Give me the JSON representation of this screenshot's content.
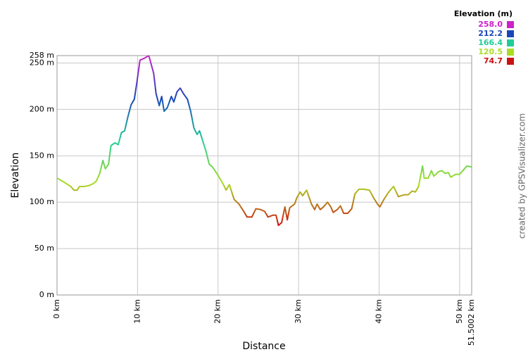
{
  "chart_data": {
    "type": "line",
    "x_label": "Distance",
    "y_label": "Elevation",
    "credit": "created by GPSVisualizer.com",
    "grid": true,
    "xlim": [
      0,
      51.5002
    ],
    "ylim": [
      0,
      258
    ],
    "xticks": [
      {
        "value": 0,
        "label": "0 km"
      },
      {
        "value": 10,
        "label": "10 km"
      },
      {
        "value": 20,
        "label": "20 km"
      },
      {
        "value": 30,
        "label": "30 km"
      },
      {
        "value": 40,
        "label": "40 km"
      },
      {
        "value": 50,
        "label": "50 km"
      },
      {
        "value": 51.5002,
        "label": "51.5002 km"
      }
    ],
    "yticks": [
      {
        "value": 0,
        "label": "0 m"
      },
      {
        "value": 50,
        "label": "50 m"
      },
      {
        "value": 100,
        "label": "100 m"
      },
      {
        "value": 150,
        "label": "150 m"
      },
      {
        "value": 200,
        "label": "200 m"
      },
      {
        "value": 250,
        "label": "250 m"
      },
      {
        "value": 258,
        "label": "258 m"
      }
    ],
    "legend": {
      "title": "Elevation (m)",
      "position": "top-right",
      "entries": [
        {
          "value": 258.0,
          "label": "258.0",
          "color": "#cc22cc"
        },
        {
          "value": 212.2,
          "label": "212.2",
          "color": "#1a47b8"
        },
        {
          "value": 166.4,
          "label": "166.4",
          "color": "#22cc99"
        },
        {
          "value": 120.5,
          "label": "120.5",
          "color": "#aadd22"
        },
        {
          "value": 74.7,
          "label": "74.7",
          "color": "#cc1111"
        }
      ]
    },
    "x": [
      0,
      0.8,
      1.7,
      2.1,
      2.5,
      2.8,
      3.4,
      4.0,
      4.5,
      4.9,
      5.3,
      5.7,
      6.0,
      6.4,
      6.7,
      7.2,
      7.6,
      8.0,
      8.4,
      8.8,
      9.2,
      9.6,
      9.9,
      10.3,
      10.8,
      11.4,
      12.0,
      12.3,
      12.7,
      13.0,
      13.3,
      13.7,
      14.2,
      14.5,
      14.9,
      15.3,
      15.7,
      16.2,
      16.6,
      17.0,
      17.4,
      17.7,
      18.1,
      18.5,
      18.9,
      19.3,
      19.7,
      20.2,
      20.6,
      21.0,
      21.4,
      22.0,
      22.6,
      23.2,
      23.6,
      24.2,
      24.7,
      25.3,
      25.8,
      26.2,
      26.8,
      27.2,
      27.5,
      27.9,
      28.3,
      28.6,
      28.9,
      29.5,
      29.8,
      30.2,
      30.5,
      31.0,
      31.6,
      32.0,
      32.3,
      32.7,
      33.1,
      33.6,
      34.0,
      34.3,
      34.8,
      35.2,
      35.6,
      36.1,
      36.6,
      37.0,
      37.5,
      38.1,
      38.8,
      39.3,
      39.8,
      40.1,
      40.6,
      41.2,
      41.8,
      42.4,
      43.1,
      43.6,
      44.1,
      44.5,
      44.9,
      45.4,
      45.6,
      46.1,
      46.5,
      46.8,
      47.4,
      47.8,
      48.2,
      48.6,
      48.9,
      49.5,
      50.0,
      50.4,
      50.9,
      51.5
    ],
    "values": [
      126,
      122,
      117,
      113,
      113,
      117,
      117,
      118,
      120,
      123,
      131,
      145,
      136,
      141,
      161,
      164,
      162,
      175,
      177,
      192,
      205,
      211,
      228,
      253,
      255,
      258,
      239,
      217,
      204,
      214,
      198,
      202,
      214,
      208,
      219,
      223,
      217,
      211,
      198,
      180,
      173,
      177,
      166,
      155,
      141,
      138,
      133,
      126,
      120,
      113,
      119,
      103,
      98,
      90,
      84,
      84,
      93,
      92,
      90,
      84,
      86,
      86,
      75,
      78,
      95,
      81,
      94,
      98,
      105,
      111,
      107,
      113,
      98,
      92,
      98,
      92,
      95,
      100,
      95,
      89,
      92,
      96,
      88,
      88,
      93,
      109,
      114,
      114,
      113,
      105,
      98,
      95,
      103,
      111,
      117,
      106,
      108,
      108,
      112,
      111,
      117,
      139,
      126,
      126,
      134,
      128,
      133,
      134,
      131,
      132,
      127,
      130,
      130,
      134,
      139,
      138
    ]
  }
}
